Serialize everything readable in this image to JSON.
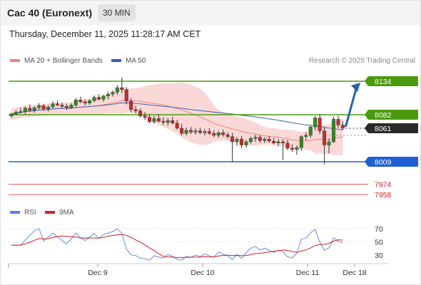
{
  "header": {
    "title": "Cac 40 (Euronext)",
    "timeframe": "30 MIN"
  },
  "timestamp": "Thursday, December 11, 2025 11:28:17 AM CET",
  "legend": {
    "ma20": "MA 20 + Bollinger Bands",
    "ma50": "MA 50",
    "rsi": "RSI",
    "rsi_ma": "9MA"
  },
  "credit": "Research © 2025 Trading Central",
  "colors": {
    "resistance": "#4c9a0f",
    "support": "#1f5fd6",
    "weak": "#e05555",
    "ma20": "#f08080",
    "ma50": "#3a5fb0",
    "band": "#fbd8d8",
    "candle_up": "#2e8b22",
    "candle_down": "#c62b2b",
    "arrow": "#2462a8",
    "rsi": "#5b7fe0",
    "rsi_ma": "#d42020"
  },
  "chart_data": {
    "type": "candlestick",
    "ylim": [
      7950,
      8145
    ],
    "price_levels": [
      {
        "value": 8134,
        "label": "8134",
        "kind": "resistance"
      },
      {
        "value": 8082,
        "label": "8082",
        "kind": "resistance"
      },
      {
        "value": 8061,
        "label": "8061",
        "kind": "last"
      },
      {
        "value": 8009,
        "label": "8009",
        "kind": "support"
      },
      {
        "value": 7974,
        "label": "7974",
        "kind": "weak"
      },
      {
        "value": 7958,
        "label": "7958",
        "kind": "weak"
      }
    ],
    "x_ticks": [
      "Dec 9",
      "Dec 10",
      "Dec 11",
      "Dec 18"
    ],
    "candles": [
      [
        8080,
        8085,
        8077,
        8083
      ],
      [
        8083,
        8089,
        8081,
        8086
      ],
      [
        8086,
        8093,
        8084,
        8087
      ],
      [
        8087,
        8095,
        8083,
        8092
      ],
      [
        8092,
        8098,
        8086,
        8089
      ],
      [
        8089,
        8095,
        8085,
        8093
      ],
      [
        8093,
        8100,
        8090,
        8096
      ],
      [
        8096,
        8099,
        8088,
        8091
      ],
      [
        8091,
        8097,
        8087,
        8094
      ],
      [
        8094,
        8103,
        8092,
        8099
      ],
      [
        8099,
        8104,
        8095,
        8097
      ],
      [
        8097,
        8101,
        8092,
        8095
      ],
      [
        8095,
        8099,
        8089,
        8093
      ],
      [
        8093,
        8100,
        8091,
        8097
      ],
      [
        8097,
        8108,
        8094,
        8105
      ],
      [
        8105,
        8110,
        8100,
        8102
      ],
      [
        8102,
        8106,
        8096,
        8100
      ],
      [
        8100,
        8106,
        8097,
        8104
      ],
      [
        8104,
        8112,
        8101,
        8109
      ],
      [
        8109,
        8114,
        8104,
        8106
      ],
      [
        8106,
        8113,
        8102,
        8111
      ],
      [
        8111,
        8118,
        8106,
        8114
      ],
      [
        8114,
        8120,
        8110,
        8117
      ],
      [
        8117,
        8128,
        8113,
        8124
      ],
      [
        8124,
        8140,
        8116,
        8121
      ],
      [
        8121,
        8125,
        8098,
        8103
      ],
      [
        8103,
        8108,
        8086,
        8090
      ],
      [
        8090,
        8096,
        8084,
        8088
      ],
      [
        8088,
        8092,
        8078,
        8080
      ],
      [
        8080,
        8086,
        8074,
        8078
      ],
      [
        8078,
        8082,
        8069,
        8071
      ],
      [
        8071,
        8080,
        8068,
        8076
      ],
      [
        8076,
        8083,
        8070,
        8072
      ],
      [
        8072,
        8078,
        8066,
        8070
      ],
      [
        8070,
        8077,
        8065,
        8073
      ],
      [
        8073,
        8079,
        8067,
        8069
      ],
      [
        8069,
        8074,
        8059,
        8061
      ],
      [
        8061,
        8068,
        8050,
        8053
      ],
      [
        8053,
        8062,
        8050,
        8058
      ],
      [
        8058,
        8063,
        8052,
        8055
      ],
      [
        8055,
        8061,
        8051,
        8057
      ],
      [
        8057,
        8062,
        8052,
        8054
      ],
      [
        8054,
        8060,
        8050,
        8056
      ],
      [
        8056,
        8061,
        8051,
        8053
      ],
      [
        8053,
        8058,
        8047,
        8050
      ],
      [
        8050,
        8057,
        8046,
        8054
      ],
      [
        8054,
        8059,
        8048,
        8051
      ],
      [
        8051,
        8055,
        8045,
        8048
      ],
      [
        8048,
        8054,
        8008,
        8040
      ],
      [
        8040,
        8047,
        8034,
        8044
      ],
      [
        8044,
        8049,
        8030,
        8035
      ],
      [
        8035,
        8043,
        8031,
        8040
      ],
      [
        8040,
        8048,
        8037,
        8045
      ],
      [
        8045,
        8051,
        8040,
        8047
      ],
      [
        8047,
        8050,
        8039,
        8042
      ],
      [
        8042,
        8047,
        8038,
        8044
      ],
      [
        8044,
        8049,
        8039,
        8041
      ],
      [
        8041,
        8046,
        8036,
        8038
      ],
      [
        8038,
        8044,
        8033,
        8040
      ],
      [
        8040,
        8044,
        8012,
        8038
      ],
      [
        8038,
        8043,
        8027,
        8030
      ],
      [
        8030,
        8036,
        8024,
        8028
      ],
      [
        8028,
        8034,
        8020,
        8031
      ],
      [
        8031,
        8050,
        8026,
        8048
      ],
      [
        8048,
        8055,
        8043,
        8050
      ],
      [
        8050,
        8066,
        8046,
        8063
      ],
      [
        8063,
        8080,
        8058,
        8077
      ],
      [
        8077,
        8083,
        8052,
        8057
      ],
      [
        8057,
        8062,
        8005,
        8035
      ],
      [
        8035,
        8045,
        8022,
        8040
      ],
      [
        8040,
        8079,
        8038,
        8075
      ],
      [
        8075,
        8080,
        8062,
        8066
      ],
      [
        8066,
        8072,
        8058,
        8061
      ]
    ],
    "projection": {
      "from": 8061,
      "to": 8134
    },
    "rsi_panel": {
      "ticks": [
        70,
        50,
        30
      ]
    }
  }
}
